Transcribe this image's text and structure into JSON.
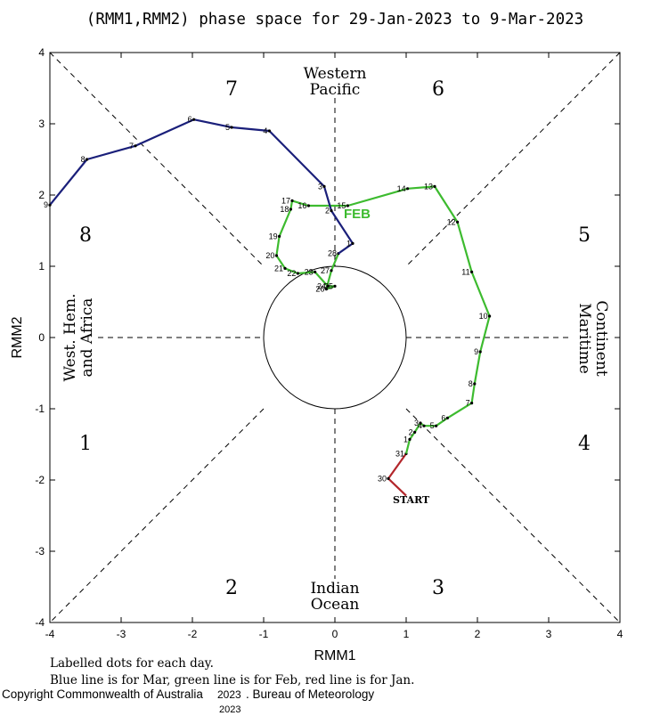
{
  "chart_data": {
    "type": "line",
    "title": "(RMM1,RMM2) phase space for 29-Jan-2023 to  9-Mar-2023",
    "xlabel": "RMM1",
    "ylabel": "RMM2",
    "xlim": [
      -4,
      4
    ],
    "ylim": [
      -4,
      4
    ],
    "x_ticks": [
      "-4",
      "-3",
      "-2",
      "-1",
      "0",
      "1",
      "2",
      "3",
      "4"
    ],
    "y_ticks": [
      "-4",
      "-3",
      "-2",
      "-1",
      "0",
      "1",
      "2",
      "3",
      "4"
    ],
    "phases": {
      "p1": "1",
      "p2": "2",
      "p3": "3",
      "p4": "4",
      "p5": "5",
      "p6": "6",
      "p7": "7",
      "p8": "8"
    },
    "regions": {
      "top_line1": "Western",
      "top_line2": "Pacific",
      "bottom_line1": "Indian",
      "bottom_line2": "Ocean",
      "left_line1": "West. Hem.",
      "left_line2": "and Africa",
      "right_line1": "Maritime",
      "right_line2": "Continent"
    },
    "start_label": "START",
    "month_label": "FEB",
    "series": [
      {
        "name": "Jan",
        "color": "#b3262b",
        "points": [
          {
            "x": 1.0,
            "y": -2.22,
            "label": ""
          },
          {
            "x": 0.75,
            "y": -1.98,
            "label": "30"
          },
          {
            "x": 1.0,
            "y": -1.63,
            "label": "31"
          }
        ]
      },
      {
        "name": "Feb",
        "color": "#3dbb2f",
        "points": [
          {
            "x": 1.0,
            "y": -1.63,
            "label": ""
          },
          {
            "x": 1.05,
            "y": -1.43,
            "label": "1"
          },
          {
            "x": 1.12,
            "y": -1.33,
            "label": "2"
          },
          {
            "x": 1.2,
            "y": -1.2,
            "label": "3"
          },
          {
            "x": 1.25,
            "y": -1.24,
            "label": "4"
          },
          {
            "x": 1.42,
            "y": -1.24,
            "label": "5"
          },
          {
            "x": 1.58,
            "y": -1.13,
            "label": "6"
          },
          {
            "x": 1.92,
            "y": -0.92,
            "label": "7"
          },
          {
            "x": 1.96,
            "y": -0.65,
            "label": "8"
          },
          {
            "x": 2.04,
            "y": -0.2,
            "label": "9"
          },
          {
            "x": 2.17,
            "y": 0.3,
            "label": "10"
          },
          {
            "x": 1.92,
            "y": 0.92,
            "label": "11"
          },
          {
            "x": 1.72,
            "y": 1.62,
            "label": "12"
          },
          {
            "x": 1.4,
            "y": 2.12,
            "label": "13"
          },
          {
            "x": 1.02,
            "y": 2.09,
            "label": "14"
          },
          {
            "x": 0.18,
            "y": 1.85,
            "label": "15"
          },
          {
            "x": -0.37,
            "y": 1.85,
            "label": "16"
          },
          {
            "x": -0.6,
            "y": 1.92,
            "label": "17"
          },
          {
            "x": -0.62,
            "y": 1.8,
            "label": "18"
          },
          {
            "x": -0.78,
            "y": 1.42,
            "label": "19"
          },
          {
            "x": -0.82,
            "y": 1.15,
            "label": "20"
          },
          {
            "x": -0.7,
            "y": 0.97,
            "label": "21"
          },
          {
            "x": -0.52,
            "y": 0.9,
            "label": "22"
          },
          {
            "x": -0.28,
            "y": 0.92,
            "label": "23"
          },
          {
            "x": -0.1,
            "y": 0.72,
            "label": "24"
          },
          {
            "x": 0.0,
            "y": 0.72,
            "label": "25"
          },
          {
            "x": -0.12,
            "y": 0.68,
            "label": "26"
          },
          {
            "x": -0.05,
            "y": 0.94,
            "label": "27"
          },
          {
            "x": 0.05,
            "y": 1.18,
            "label": "28"
          }
        ]
      },
      {
        "name": "Mar",
        "color": "#1a1f7a",
        "points": [
          {
            "x": 0.05,
            "y": 1.18,
            "label": ""
          },
          {
            "x": 0.25,
            "y": 1.32,
            "label": "1"
          },
          {
            "x": -0.05,
            "y": 1.78,
            "label": "2"
          },
          {
            "x": -0.15,
            "y": 2.12,
            "label": "3"
          },
          {
            "x": -0.92,
            "y": 2.9,
            "label": "4"
          },
          {
            "x": -1.45,
            "y": 2.95,
            "label": "5"
          },
          {
            "x": -1.98,
            "y": 3.06,
            "label": "6"
          },
          {
            "x": -2.8,
            "y": 2.69,
            "label": "7"
          },
          {
            "x": -3.48,
            "y": 2.5,
            "label": "8"
          },
          {
            "x": -4.0,
            "y": 1.86,
            "label": "9"
          }
        ]
      }
    ]
  },
  "footer": {
    "line1": "Labelled dots for each day.",
    "line2": "Blue line is for Mar, green line is for Feb, red line is for Jan.",
    "copyright": "Copyright Commonwealth of Australia",
    "year_a": "2023",
    "bureau": ". Bureau of Meteorology",
    "year_b": "2023"
  }
}
